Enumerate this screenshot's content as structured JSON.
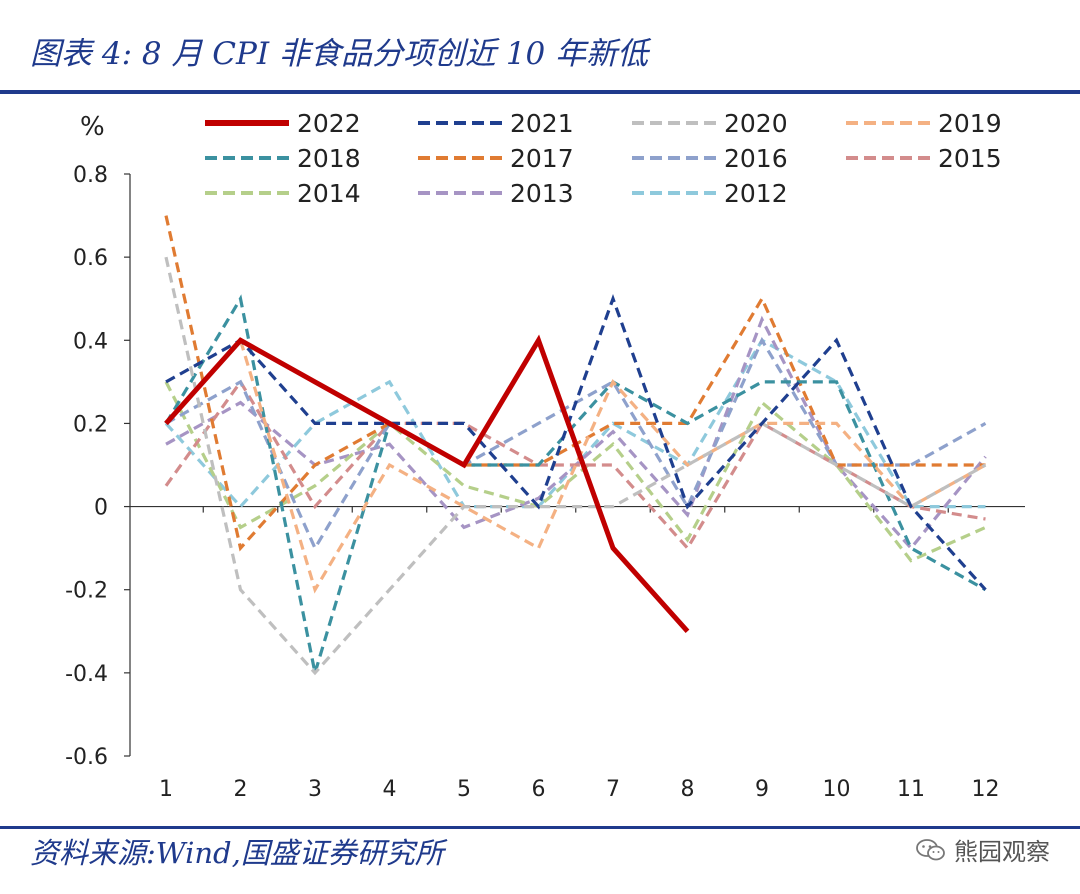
{
  "header": {
    "title": "图表 4:  8 月 CPI 非食品分项创近 10 年新低"
  },
  "footer": {
    "source": "资料来源:Wind,国盛证券研究所",
    "watermark": "熊园观察"
  },
  "icons": {
    "watermark_icon": "wechat-icon"
  },
  "chart_data": {
    "type": "line",
    "ylabel": "%",
    "x": [
      1,
      2,
      3,
      4,
      5,
      6,
      7,
      8,
      9,
      10,
      11,
      12
    ],
    "yticks": [
      "0.8",
      "0.6",
      "0.4",
      "0.2",
      "0",
      "-0.2",
      "-0.4",
      "-0.6"
    ],
    "ylim": [
      -0.6,
      0.8
    ],
    "legend_position": "top",
    "series": [
      {
        "name": "2022",
        "color": "#c00000",
        "style": "solid",
        "values": [
          0.2,
          0.4,
          0.3,
          0.2,
          0.1,
          0.4,
          -0.1,
          -0.3,
          null,
          null,
          null,
          null
        ]
      },
      {
        "name": "2021",
        "color": "#1f3f8f",
        "style": "dashed",
        "values": [
          0.3,
          0.4,
          0.2,
          0.2,
          0.2,
          0.0,
          0.5,
          0.0,
          0.2,
          0.4,
          0.0,
          -0.2
        ]
      },
      {
        "name": "2020",
        "color": "#bfbfbf",
        "style": "dashed",
        "values": [
          0.6,
          -0.2,
          -0.4,
          -0.2,
          0.0,
          0.0,
          0.0,
          0.1,
          0.2,
          0.1,
          0.0,
          0.1
        ]
      },
      {
        "name": "2019",
        "color": "#f4b183",
        "style": "dashed",
        "values": [
          0.2,
          0.4,
          -0.2,
          0.1,
          0.0,
          -0.1,
          0.3,
          0.1,
          0.2,
          0.2,
          0.0,
          0.1
        ]
      },
      {
        "name": "2018",
        "color": "#3b91a0",
        "style": "dashed",
        "values": [
          0.2,
          0.5,
          -0.4,
          0.2,
          0.1,
          0.1,
          0.3,
          0.2,
          0.3,
          0.3,
          -0.1,
          -0.2
        ]
      },
      {
        "name": "2017",
        "color": "#e07b32",
        "style": "dashed",
        "values": [
          0.7,
          -0.1,
          0.1,
          0.2,
          0.1,
          0.1,
          0.2,
          0.2,
          0.5,
          0.1,
          0.1,
          0.1
        ]
      },
      {
        "name": "2016",
        "color": "#8ea1cc",
        "style": "dashed",
        "values": [
          0.2,
          0.3,
          -0.1,
          0.2,
          0.1,
          0.2,
          0.3,
          0.0,
          0.4,
          0.1,
          0.1,
          0.2
        ]
      },
      {
        "name": "2015",
        "color": "#d38c8c",
        "style": "dashed",
        "values": [
          0.05,
          0.3,
          0.0,
          0.2,
          0.2,
          0.1,
          0.1,
          -0.1,
          0.2,
          0.1,
          0.0,
          -0.03
        ]
      },
      {
        "name": "2014",
        "color": "#b5cf8a",
        "style": "dashed",
        "values": [
          0.3,
          -0.05,
          0.05,
          0.2,
          0.05,
          0.0,
          0.15,
          -0.08,
          0.25,
          0.1,
          -0.13,
          -0.05
        ]
      },
      {
        "name": "2013",
        "color": "#a694c4",
        "style": "dashed",
        "values": [
          0.15,
          0.25,
          0.1,
          0.15,
          -0.05,
          0.02,
          0.18,
          -0.02,
          0.45,
          0.1,
          -0.1,
          0.12
        ]
      },
      {
        "name": "2012",
        "color": "#8ec9dc",
        "style": "dashed",
        "values": [
          0.2,
          0.0,
          0.2,
          0.3,
          0.0,
          0.0,
          0.2,
          0.1,
          0.4,
          0.3,
          0.0,
          0.0
        ]
      }
    ]
  }
}
